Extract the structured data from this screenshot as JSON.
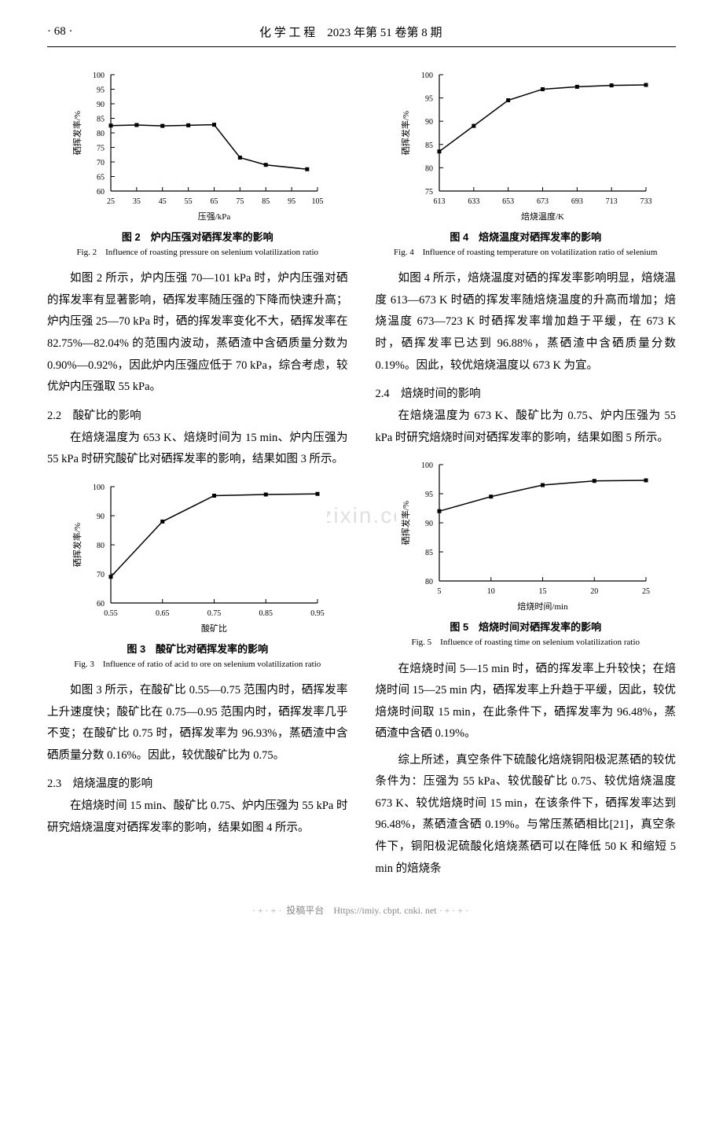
{
  "header": {
    "page_label": "· 68 ·",
    "journal": "化 学 工 程　2023 年第 51 卷第 8 期"
  },
  "watermark": "www.zixin.com.cn",
  "footer": {
    "text": "投稿平台　Https://imiy. cbpt. cnki. net"
  },
  "left": {
    "fig2": {
      "type": "line",
      "caption_cn": "图 2　炉内压强对硒挥发率的影响",
      "caption_en": "Fig. 2　Influence of roasting pressure on selenium volatilization ratio",
      "xlabel": "压强/kPa",
      "ylabel": "硒挥发率/%",
      "xlim": [
        25,
        105
      ],
      "xtick_step": 10,
      "ylim": [
        60,
        100
      ],
      "ytick_step": 5,
      "points_x": [
        25,
        35,
        45,
        55,
        65,
        75,
        85,
        101
      ],
      "points_y": [
        82.5,
        82.7,
        82.4,
        82.6,
        82.8,
        71.5,
        69,
        67.5
      ],
      "line_color": "#000000",
      "marker": "square",
      "marker_size": 5,
      "label_fontsize": 11,
      "tick_fontsize": 10,
      "background_color": "#ffffff"
    },
    "para1": "如图 2 所示，炉内压强 70—101 kPa 时，炉内压强对硒的挥发率有显著影响，硒挥发率随压强的下降而快速升高；炉内压强 25—70 kPa 时，硒的挥发率变化不大，硒挥发率在 82.75%—82.04% 的范围内波动，蒸硒渣中含硒质量分数为 0.90%—0.92%，因此炉内压强应低于 70 kPa，综合考虑，较优炉内压强取 55 kPa。",
    "sect22": "2.2　酸矿比的影响",
    "para2": "在焙烧温度为 653 K、焙烧时间为 15 min、炉内压强为 55 kPa 时研究酸矿比对硒挥发率的影响，结果如图 3 所示。",
    "fig3": {
      "type": "line",
      "caption_cn": "图 3　酸矿比对硒挥发率的影响",
      "caption_en": "Fig. 3　Influence of ratio of acid to ore on selenium volatilization ratio",
      "xlabel": "酸矿比",
      "ylabel": "硒挥发率/%",
      "xlim": [
        0.55,
        0.95
      ],
      "xtick_step": 0.1,
      "ylim": [
        60,
        100
      ],
      "ytick_step": 10,
      "points_x": [
        0.55,
        0.65,
        0.75,
        0.85,
        0.95
      ],
      "points_y": [
        69,
        88,
        96.9,
        97.3,
        97.5
      ],
      "line_color": "#000000",
      "marker": "square",
      "marker_size": 5,
      "label_fontsize": 11,
      "tick_fontsize": 10,
      "background_color": "#ffffff"
    },
    "para3": "如图 3 所示，在酸矿比 0.55—0.75 范围内时，硒挥发率上升速度快；酸矿比在 0.75—0.95 范围内时，硒挥发率几乎不变；在酸矿比 0.75 时，硒挥发率为 96.93%，蒸硒渣中含硒质量分数 0.16%。因此，较优酸矿比为 0.75。",
    "sect23": "2.3　焙烧温度的影响",
    "para4": "在焙烧时间 15 min、酸矿比 0.75、炉内压强为 55 kPa 时研究焙烧温度对硒挥发率的影响，结果如图 4 所示。"
  },
  "right": {
    "fig4": {
      "type": "line",
      "caption_cn": "图 4　焙烧温度对硒挥发率的影响",
      "caption_en": "Fig. 4　Influence of roasting temperature on volatilization ratio of selenium",
      "xlabel": "焙烧温度/K",
      "ylabel": "硒挥发率/%",
      "xlim": [
        613,
        733
      ],
      "xtick_step": 20,
      "ylim": [
        75,
        100
      ],
      "ytick_step": 5,
      "points_x": [
        613,
        633,
        653,
        673,
        693,
        713,
        733
      ],
      "points_y": [
        83.5,
        89,
        94.5,
        96.88,
        97.4,
        97.7,
        97.8
      ],
      "line_color": "#000000",
      "marker": "square",
      "marker_size": 5,
      "label_fontsize": 11,
      "tick_fontsize": 10,
      "background_color": "#ffffff"
    },
    "para1": "如图 4 所示，焙烧温度对硒的挥发率影响明显，焙烧温度 613—673 K 时硒的挥发率随焙烧温度的升高而增加；焙烧温度 673—723 K 时硒挥发率增加趋于平缓，在 673 K 时，硒挥发率已达到 96.88%，蒸硒渣中含硒质量分数 0.19%。因此，较优焙烧温度以 673 K 为宜。",
    "sect24": "2.4　焙烧时间的影响",
    "para2": "在焙烧温度为 673 K、酸矿比为 0.75、炉内压强为 55 kPa 时研究焙烧时间对硒挥发率的影响，结果如图 5 所示。",
    "fig5": {
      "type": "line",
      "caption_cn": "图 5　焙烧时间对硒挥发率的影响",
      "caption_en": "Fig. 5　Influence of roasting time on selenium volatilization ratio",
      "xlabel": "焙烧时间/min",
      "ylabel": "硒挥发率/%",
      "xlim": [
        5,
        25
      ],
      "xtick_step": 5,
      "ylim": [
        80,
        100
      ],
      "ytick_step": 5,
      "points_x": [
        5,
        10,
        15,
        20,
        25
      ],
      "points_y": [
        92,
        94.5,
        96.48,
        97.2,
        97.3
      ],
      "line_color": "#000000",
      "marker": "square",
      "marker_size": 5,
      "label_fontsize": 11,
      "tick_fontsize": 10,
      "background_color": "#ffffff"
    },
    "para3": "在焙烧时间 5—15 min 时，硒的挥发率上升较快；在焙烧时间 15—25 min 内，硒挥发率上升趋于平缓，因此，较优焙烧时间取 15 min，在此条件下，硒挥发率为 96.48%，蒸硒渣中含硒 0.19%。",
    "para4": "综上所述，真空条件下硫酸化焙烧铜阳极泥蒸硒的较优条件为：压强为 55 kPa、较优酸矿比 0.75、较优焙烧温度 673 K、较优焙烧时间 15 min，在该条件下，硒挥发率达到 96.48%，蒸硒渣含硒 0.19%。与常压蒸硒相比[21]，真空条件下，铜阳极泥硫酸化焙烧蒸硒可以在降低 50 K 和缩短 5 min 的焙烧条"
  }
}
